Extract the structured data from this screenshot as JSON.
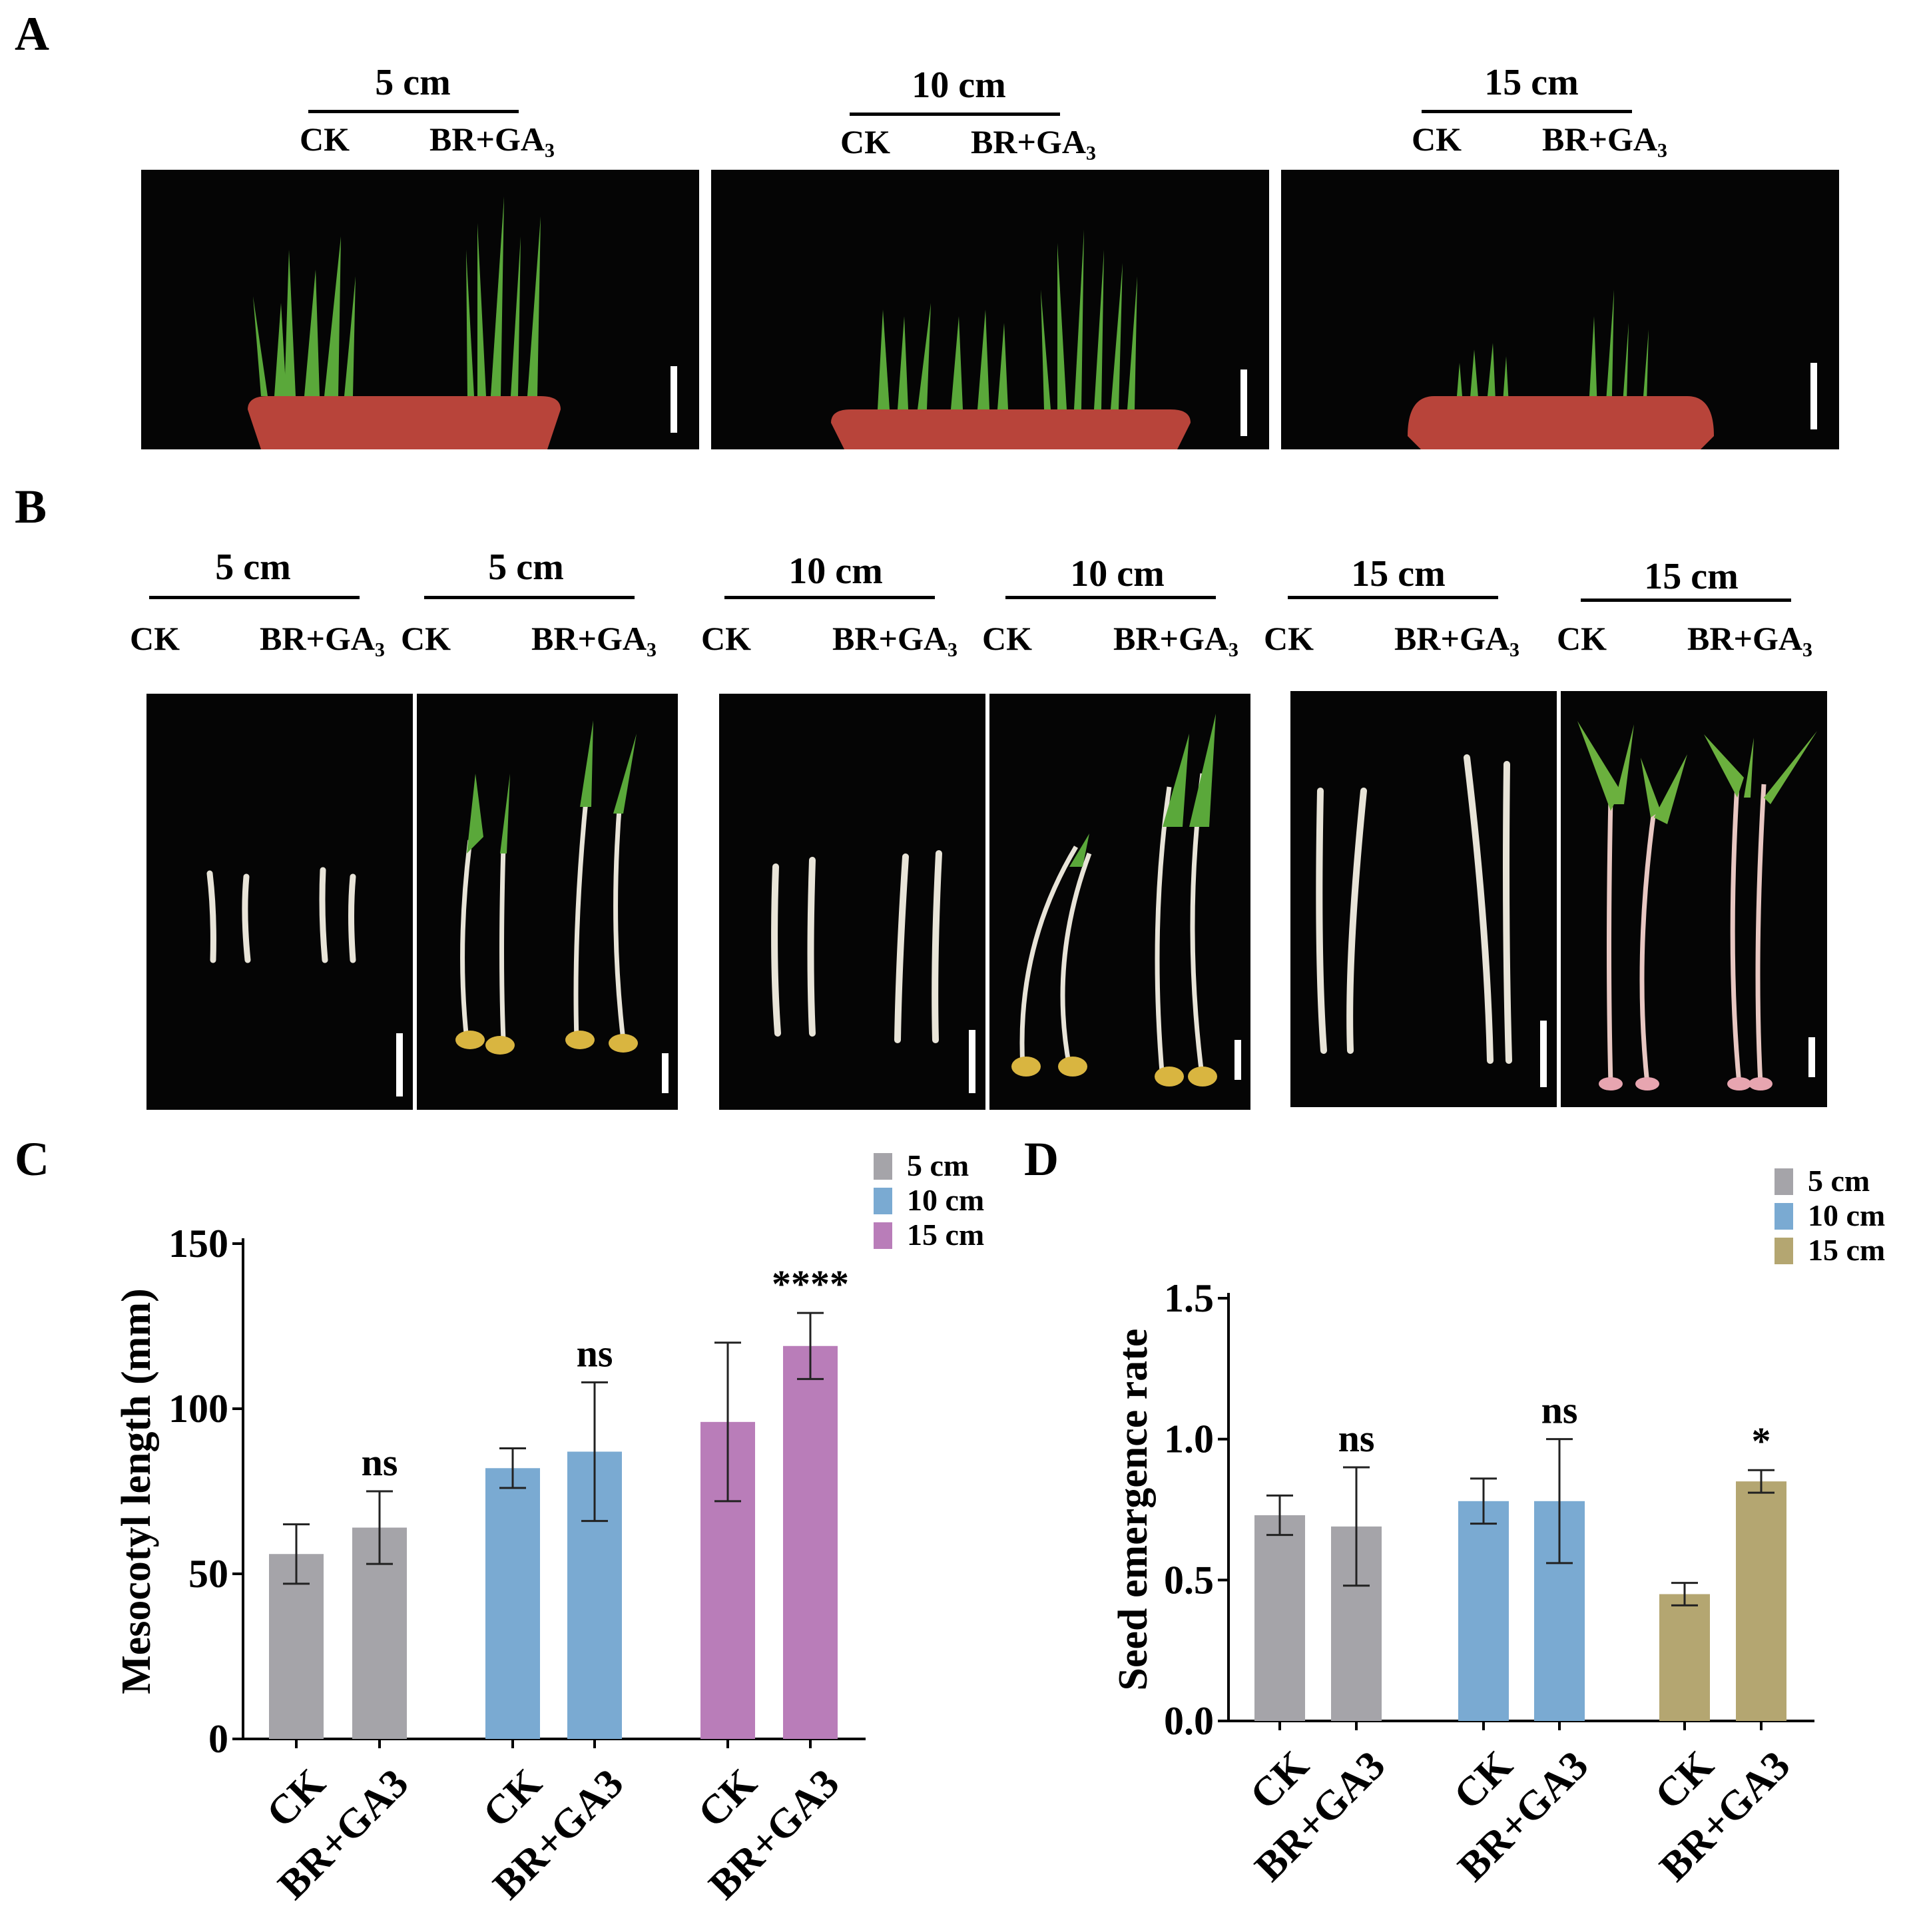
{
  "panels": {
    "a": {
      "letter": "A",
      "groups": [
        {
          "depth": "5 cm",
          "ck": "CK",
          "trt": "BR+GA₃"
        },
        {
          "depth": "10 cm",
          "ck": "CK",
          "trt": "BR+GA₃"
        },
        {
          "depth": "15 cm",
          "ck": "CK",
          "trt": "BR+GA₃"
        }
      ]
    },
    "b": {
      "letter": "B",
      "groups": [
        {
          "depth": "5 cm",
          "ck": "CK",
          "trt": "BR+GA₃"
        },
        {
          "depth": "5 cm",
          "ck": "CK",
          "trt": "BR+GA₃"
        },
        {
          "depth": "10 cm",
          "ck": "CK",
          "trt": "BR+GA₃"
        },
        {
          "depth": "10 cm",
          "ck": "CK",
          "trt": "BR+GA₃"
        },
        {
          "depth": "15 cm",
          "ck": "CK",
          "trt": "BR+GA₃"
        },
        {
          "depth": "15 cm",
          "ck": "CK",
          "trt": "BR+GA₃"
        }
      ]
    },
    "c": {
      "letter": "C"
    },
    "d": {
      "letter": "D"
    }
  },
  "colors": {
    "grey": "#a5a4a9",
    "blue": "#7aaad2",
    "purple": "#b97db9",
    "olive": "#b4a671",
    "photo_bg": "#050505",
    "pot": "#b8443a",
    "leaf": "#5aa83a",
    "stem": "#e8e4d8"
  },
  "chart_data": [
    {
      "type": "bar",
      "panel": "C",
      "ylabel": "Mesocotyl length (mm)",
      "ylim": [
        0,
        150
      ],
      "yticks": [
        0,
        50,
        100,
        150
      ],
      "categories": [
        "CK",
        "BR+GA3",
        "CK",
        "BR+GA3",
        "CK",
        "BR+GA3"
      ],
      "values": [
        56,
        64,
        82,
        87,
        96,
        119
      ],
      "errors": [
        9,
        11,
        6,
        21,
        24,
        10
      ],
      "group_of_bar": [
        0,
        0,
        1,
        1,
        2,
        2
      ],
      "annotations": [
        "",
        "ns",
        "",
        "ns",
        "",
        "****"
      ],
      "legend": [
        "5 cm",
        "10 cm",
        "15 cm"
      ],
      "legend_colors": [
        "#a5a4a9",
        "#7aaad2",
        "#b97db9"
      ],
      "legend_position": "top-right"
    },
    {
      "type": "bar",
      "panel": "D",
      "ylabel": "Seed emergence rate",
      "ylim": [
        0,
        1.5
      ],
      "yticks": [
        "0.0",
        "0.5",
        "1.0",
        "1.5"
      ],
      "categories": [
        "CK",
        "BR+GA3",
        "CK",
        "BR+GA3",
        "CK",
        "BR+GA3"
      ],
      "values": [
        0.73,
        0.69,
        0.78,
        0.78,
        0.45,
        0.85
      ],
      "errors": [
        0.07,
        0.21,
        0.08,
        0.22,
        0.04,
        0.04
      ],
      "group_of_bar": [
        0,
        0,
        1,
        1,
        2,
        2
      ],
      "annotations": [
        "",
        "ns",
        "",
        "ns",
        "",
        "*"
      ],
      "legend": [
        "5 cm",
        "10 cm",
        "15 cm"
      ],
      "legend_colors": [
        "#a5a4a9",
        "#7aaad2",
        "#b4a671"
      ],
      "legend_position": "top-right"
    }
  ]
}
